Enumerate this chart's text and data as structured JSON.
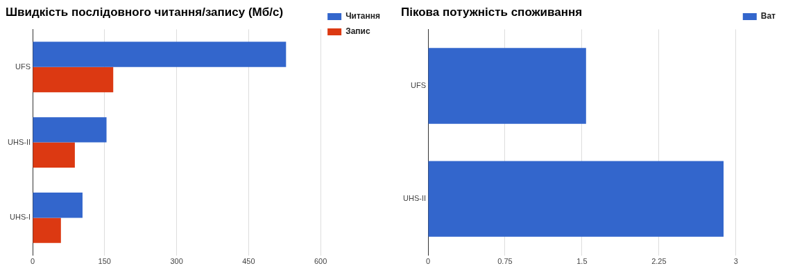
{
  "chart_data": [
    {
      "type": "bar",
      "orientation": "horizontal",
      "title": "Швидкість послідовного читання/запису (Мб/с)",
      "categories": [
        "UFS",
        "UHS-II",
        "UHS-I"
      ],
      "series": [
        {
          "name": "Читання",
          "color": "#3366cc",
          "values": [
            528,
            154,
            104
          ]
        },
        {
          "name": "Запис",
          "color": "#dc3912",
          "values": [
            168,
            88,
            59
          ]
        }
      ],
      "xlim": [
        0,
        600
      ],
      "xticks": [
        0,
        150,
        300,
        450,
        600
      ],
      "grid": "x",
      "legend": "top right"
    },
    {
      "type": "bar",
      "orientation": "horizontal",
      "title": "Пікова потужність споживання",
      "categories": [
        "UFS",
        "UHS-II"
      ],
      "series": [
        {
          "name": "Ват",
          "color": "#3366cc",
          "values": [
            1.54,
            2.88
          ]
        }
      ],
      "xlim": [
        0,
        3
      ],
      "xticks": [
        0,
        0.75,
        1.5,
        2.25,
        3
      ],
      "grid": "x",
      "legend": "top right"
    }
  ]
}
